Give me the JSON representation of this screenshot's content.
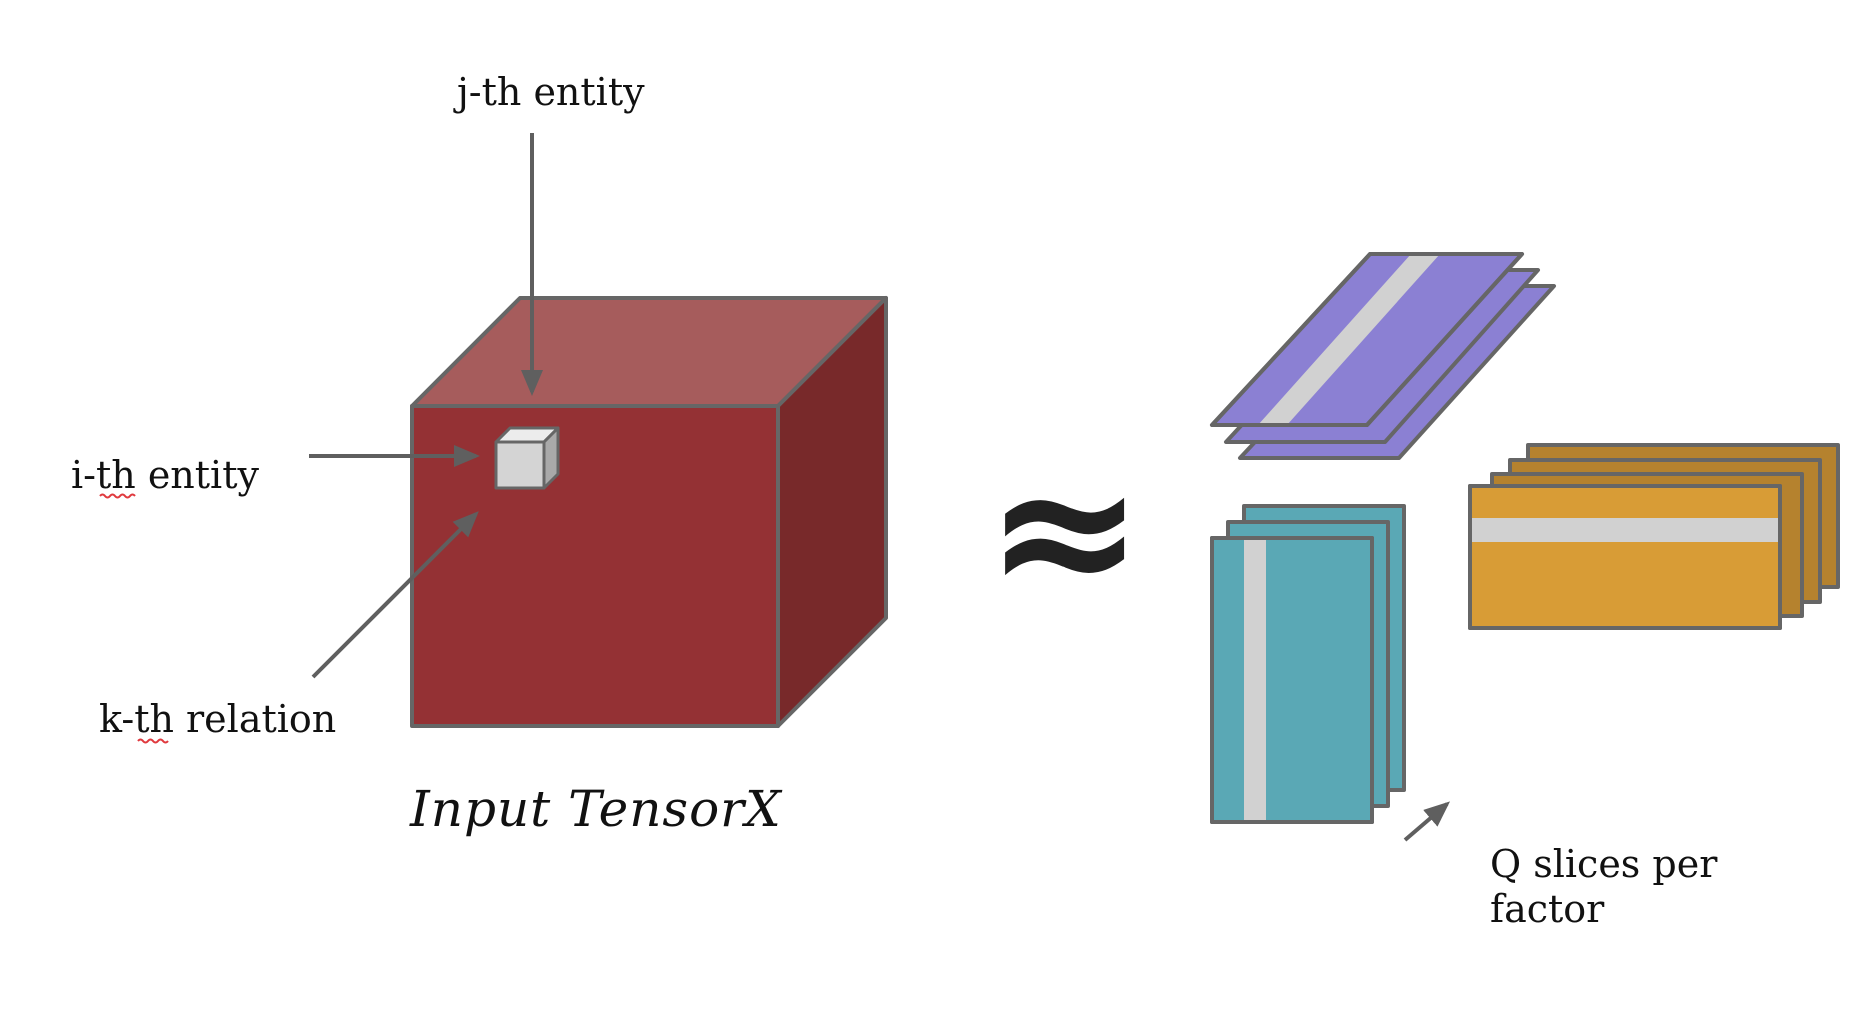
{
  "labels": {
    "j_entity": "j-th entity",
    "i_entity": "i-th entity",
    "k_relation": "k-th relation",
    "caption": "Input TensorX",
    "approx_symbol": "≈",
    "q_slices_line1": "Q slices per",
    "q_slices_line2": "factor"
  },
  "colors": {
    "tensor_front": "#943134",
    "tensor_top": "#a65c5c",
    "tensor_side": "#78292a",
    "element_cube": "#d4d4d4",
    "factor_purple": "#8b80d3",
    "factor_teal": "#5aa8b5",
    "factor_gold": "#d89c36",
    "factor_gold_dark": "#b5822e",
    "slice_highlight": "#d1d1d1",
    "edge": "#666666"
  }
}
